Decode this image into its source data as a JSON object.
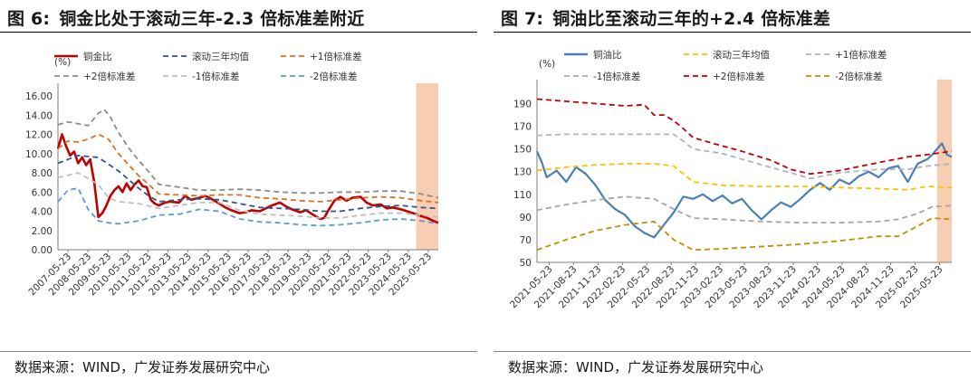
{
  "charts_header": [
    {
      "fig": "图 6:",
      "title": "铜金比处于滚动三年-2.3 倍标准差附近",
      "source": "数据来源：WIND，广发证券发展研究中心",
      "unit": "(%)"
    },
    {
      "fig": "图 7:",
      "title": "铜油比至滚动三年的+2.4 倍标准差",
      "source": "数据来源：WIND，广发证券发展研究中心",
      "unit": "(%)"
    }
  ],
  "chart_data": [
    {
      "type": "line",
      "unit": "(%)",
      "ylim": [
        0,
        16
      ],
      "yticks": [
        "16.00",
        "14.00",
        "12.00",
        "10.00",
        "8.00",
        "6.00",
        "4.00",
        "2.00",
        "0.00"
      ],
      "x_ticks": [
        "2007-05-23",
        "2008-05-23",
        "2009-05-23",
        "2010-05-23",
        "2011-05-23",
        "2012-05-23",
        "2013-05-23",
        "2014-05-23",
        "2015-05-23",
        "2016-05-23",
        "2017-05-23",
        "2018-05-23",
        "2019-05-23",
        "2020-05-23",
        "2021-05-23",
        "2022-05-23",
        "2023-05-23",
        "2024-05-23",
        "2025-05-23"
      ],
      "x_range": [
        2007.0,
        2025.85
      ],
      "highlight_range": [
        2024.75,
        2025.85
      ],
      "highlight_color": "#f7c6a5",
      "series": [
        {
          "name": "铜金比",
          "color": "#c00000",
          "style": "solid",
          "x": [
            2007.0,
            2007.2,
            2007.4,
            2007.6,
            2007.8,
            2008.0,
            2008.2,
            2008.4,
            2008.6,
            2008.8,
            2009.0,
            2009.2,
            2009.4,
            2009.6,
            2009.8,
            2010.0,
            2010.2,
            2010.4,
            2010.6,
            2010.8,
            2011.0,
            2011.2,
            2011.4,
            2011.6,
            2011.8,
            2012.0,
            2012.3,
            2012.6,
            2013.0,
            2013.3,
            2013.6,
            2014.0,
            2014.3,
            2014.6,
            2015.0,
            2015.3,
            2015.6,
            2016.0,
            2016.3,
            2016.6,
            2017.0,
            2017.3,
            2017.6,
            2018.0,
            2018.3,
            2018.6,
            2019.0,
            2019.3,
            2019.6,
            2020.0,
            2020.2,
            2020.4,
            2020.7,
            2021.0,
            2021.3,
            2021.6,
            2022.0,
            2022.3,
            2022.6,
            2023.0,
            2023.3,
            2023.6,
            2024.0,
            2024.3,
            2024.6,
            2025.0,
            2025.3,
            2025.6,
            2025.85
          ],
          "y": [
            10.5,
            12.0,
            10.8,
            9.8,
            10.2,
            9.0,
            9.6,
            8.8,
            9.4,
            7.0,
            3.4,
            3.8,
            4.6,
            5.6,
            6.2,
            6.6,
            6.0,
            6.9,
            6.2,
            6.8,
            7.2,
            6.6,
            6.5,
            5.2,
            4.8,
            4.6,
            4.9,
            5.0,
            4.9,
            5.6,
            5.2,
            5.4,
            5.6,
            5.3,
            4.8,
            4.4,
            4.1,
            3.8,
            3.9,
            4.1,
            4.0,
            4.3,
            4.6,
            4.9,
            4.5,
            4.2,
            3.9,
            4.1,
            3.7,
            3.2,
            3.3,
            4.1,
            5.1,
            5.5,
            5.1,
            5.4,
            5.5,
            4.9,
            4.6,
            4.7,
            4.3,
            4.4,
            4.2,
            4.0,
            3.8,
            3.5,
            3.3,
            3.0,
            2.8
          ]
        },
        {
          "name": "滚动三年均值",
          "color": "#2f5597",
          "style": "dash",
          "x": [
            2007.0,
            2008.0,
            2009.0,
            2010.0,
            2011.0,
            2011.5,
            2012.0,
            2013.0,
            2014.0,
            2015.0,
            2016.0,
            2017.0,
            2018.0,
            2019.0,
            2020.0,
            2021.0,
            2022.0,
            2023.0,
            2024.0,
            2025.0,
            2025.85
          ],
          "y": [
            9.0,
            9.8,
            9.6,
            8.2,
            6.4,
            5.6,
            5.0,
            5.2,
            5.3,
            5.2,
            4.8,
            4.4,
            4.3,
            4.2,
            4.0,
            4.0,
            4.3,
            4.5,
            4.6,
            4.4,
            4.3
          ]
        },
        {
          "name": "+1倍标准差",
          "color": "#e07020",
          "style": "dash",
          "x": [
            2007.0,
            2007.5,
            2008.0,
            2008.5,
            2009.0,
            2009.5,
            2010.0,
            2011.0,
            2011.5,
            2012.0,
            2013.0,
            2014.0,
            2015.0,
            2016.0,
            2017.0,
            2018.0,
            2019.0,
            2020.0,
            2021.0,
            2022.0,
            2023.0,
            2024.0,
            2025.0,
            2025.85
          ],
          "y": [
            10.5,
            11.3,
            11.2,
            11.5,
            12.0,
            11.5,
            10.0,
            7.7,
            6.8,
            5.8,
            5.7,
            5.6,
            5.7,
            5.7,
            5.4,
            5.3,
            5.1,
            5.0,
            5.2,
            5.4,
            5.5,
            5.4,
            5.1,
            4.9
          ]
        },
        {
          "name": "+2倍标准差",
          "color": "#8c8c8c",
          "style": "dash",
          "x": [
            2007.0,
            2007.5,
            2008.0,
            2008.5,
            2009.0,
            2009.3,
            2009.6,
            2010.0,
            2010.5,
            2011.0,
            2011.5,
            2012.0,
            2013.0,
            2014.0,
            2015.0,
            2016.0,
            2017.0,
            2018.0,
            2019.0,
            2020.0,
            2021.0,
            2022.0,
            2023.0,
            2024.0,
            2025.0,
            2025.85
          ],
          "y": [
            13.0,
            13.3,
            13.1,
            12.9,
            14.2,
            14.6,
            13.8,
            12.2,
            10.6,
            9.3,
            8.1,
            6.8,
            6.5,
            6.2,
            6.2,
            6.3,
            6.2,
            6.0,
            5.9,
            5.9,
            6.0,
            6.0,
            6.1,
            6.1,
            5.8,
            5.4
          ]
        },
        {
          "name": "-1倍标准差",
          "color": "#bfbfbf",
          "style": "dash",
          "x": [
            2007.0,
            2008.0,
            2009.0,
            2009.5,
            2010.0,
            2011.0,
            2012.0,
            2013.0,
            2014.0,
            2015.0,
            2016.0,
            2017.0,
            2018.0,
            2019.0,
            2020.0,
            2021.0,
            2022.0,
            2023.0,
            2024.0,
            2025.0,
            2025.85
          ],
          "y": [
            7.5,
            8.0,
            6.8,
            5.4,
            5.0,
            4.8,
            4.3,
            4.6,
            4.9,
            4.9,
            4.1,
            3.7,
            3.6,
            3.5,
            3.3,
            3.3,
            3.6,
            3.8,
            3.8,
            3.6,
            3.4
          ]
        },
        {
          "name": "-2倍标准差",
          "color": "#5b9bd5",
          "style": "dash",
          "x": [
            2007.0,
            2007.5,
            2008.0,
            2008.5,
            2009.0,
            2009.5,
            2010.0,
            2011.0,
            2012.0,
            2013.0,
            2014.0,
            2015.0,
            2016.0,
            2017.0,
            2018.0,
            2019.0,
            2020.0,
            2021.0,
            2022.0,
            2023.0,
            2024.0,
            2025.0,
            2025.85
          ],
          "y": [
            5.0,
            6.2,
            6.4,
            4.2,
            3.0,
            2.8,
            2.7,
            3.0,
            3.6,
            3.7,
            4.2,
            4.0,
            3.2,
            2.9,
            2.8,
            2.6,
            2.5,
            2.6,
            2.8,
            3.1,
            3.2,
            3.0,
            2.7
          ]
        }
      ],
      "legend": {
        "placement": "top",
        "rows": 2
      }
    },
    {
      "type": "line",
      "unit": "(%)",
      "ylim": [
        50,
        200
      ],
      "yticks": [
        "190",
        "170",
        "150",
        "130",
        "110",
        "90",
        "70",
        "50"
      ],
      "x_ticks": [
        "2021-05-23",
        "2021-08-23",
        "2021-11-23",
        "2022-02-23",
        "2022-05-23",
        "2022-08-23",
        "2022-11-23",
        "2023-02-23",
        "2023-05-23",
        "2023-08-23",
        "2023-11-23",
        "2024-02-23",
        "2024-05-23",
        "2024-08-23",
        "2024-11-23",
        "2025-02-23",
        "2025-05-23"
      ],
      "x_range": [
        2021.3,
        2025.55
      ],
      "highlight_range": [
        2025.4,
        2025.55
      ],
      "highlight_color": "#f7c6a5",
      "series": [
        {
          "name": "铜油比",
          "color": "#4a7fb5",
          "style": "solid",
          "x": [
            2021.3,
            2021.35,
            2021.4,
            2021.5,
            2021.6,
            2021.7,
            2021.8,
            2021.9,
            2022.0,
            2022.1,
            2022.2,
            2022.3,
            2022.4,
            2022.5,
            2022.6,
            2022.7,
            2022.8,
            2022.9,
            2023.0,
            2023.1,
            2023.2,
            2023.3,
            2023.4,
            2023.5,
            2023.6,
            2023.7,
            2023.8,
            2023.9,
            2024.0,
            2024.1,
            2024.2,
            2024.3,
            2024.4,
            2024.5,
            2024.6,
            2024.7,
            2024.8,
            2024.9,
            2025.0,
            2025.1,
            2025.2,
            2025.3,
            2025.35,
            2025.4,
            2025.45,
            2025.5,
            2025.55
          ],
          "y": [
            148,
            138,
            125,
            131,
            121,
            134,
            128,
            118,
            105,
            97,
            92,
            82,
            76,
            72,
            83,
            94,
            108,
            106,
            110,
            104,
            109,
            102,
            106,
            96,
            88,
            96,
            103,
            99,
            106,
            114,
            120,
            114,
            123,
            119,
            126,
            130,
            125,
            133,
            135,
            121,
            137,
            141,
            145,
            150,
            155,
            145,
            143
          ]
        },
        {
          "name": "滚动三年均值",
          "color": "#ffc000",
          "style": "dash",
          "x": [
            2021.3,
            2021.6,
            2021.9,
            2022.2,
            2022.5,
            2022.7,
            2022.9,
            2023.2,
            2023.6,
            2024.0,
            2024.4,
            2024.8,
            2025.1,
            2025.3,
            2025.55
          ],
          "y": [
            131,
            134,
            136,
            137,
            137,
            135,
            121,
            118,
            117,
            117,
            116,
            115,
            114,
            117,
            116
          ]
        },
        {
          "name": "+1倍标准差",
          "color": "#a9b4c8",
          "style": "dash",
          "x": [
            2021.3,
            2021.6,
            2021.9,
            2022.2,
            2022.5,
            2022.7,
            2022.8,
            2022.9,
            2023.2,
            2023.6,
            2023.9,
            2024.1,
            2024.4,
            2024.8,
            2025.1,
            2025.3,
            2025.55
          ],
          "y": [
            162,
            163,
            163,
            163,
            163,
            163,
            157,
            150,
            146,
            136,
            129,
            124,
            129,
            132,
            132,
            135,
            137
          ]
        },
        {
          "name": "-1倍标准差",
          "color": "#a6a6a6",
          "style": "dash",
          "x": [
            2021.3,
            2021.6,
            2021.9,
            2022.2,
            2022.5,
            2022.7,
            2022.9,
            2023.2,
            2023.6,
            2024.0,
            2024.4,
            2024.8,
            2025.0,
            2025.2,
            2025.35,
            2025.55
          ],
          "y": [
            96,
            101,
            105,
            108,
            106,
            97,
            89,
            88,
            86,
            85,
            85,
            86,
            88,
            93,
            99,
            100
          ]
        },
        {
          "name": "+2倍标准差",
          "color": "#c00000",
          "style": "dash",
          "x": [
            2021.3,
            2021.6,
            2021.9,
            2022.2,
            2022.4,
            2022.5,
            2022.6,
            2022.7,
            2022.8,
            2022.9,
            2023.1,
            2023.4,
            2023.7,
            2023.9,
            2024.1,
            2024.4,
            2024.8,
            2025.1,
            2025.3,
            2025.55
          ],
          "y": [
            194,
            192,
            190,
            188,
            189,
            180,
            180,
            175,
            168,
            160,
            155,
            148,
            140,
            132,
            128,
            131,
            138,
            143,
            145,
            148
          ]
        },
        {
          "name": "-2倍标准差",
          "color": "#bf9000",
          "style": "dash",
          "x": [
            2021.3,
            2021.6,
            2021.9,
            2022.2,
            2022.5,
            2022.7,
            2022.9,
            2023.2,
            2023.6,
            2024.0,
            2024.4,
            2024.8,
            2025.0,
            2025.2,
            2025.35,
            2025.55
          ],
          "y": [
            61,
            70,
            78,
            83,
            86,
            70,
            61,
            62,
            64,
            66,
            69,
            73,
            73,
            82,
            89,
            88
          ]
        }
      ],
      "legend": {
        "placement": "top",
        "rows": 2
      }
    }
  ]
}
